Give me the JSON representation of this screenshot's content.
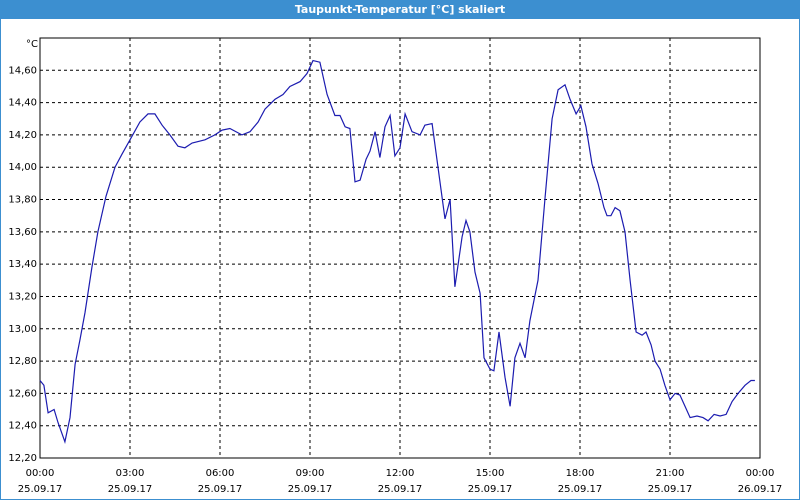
{
  "chart_data": {
    "type": "line",
    "title": "Taupunkt-Temperatur [°C] skaliert",
    "y_unit": "°C",
    "color": "#1c1cb0",
    "grid": true,
    "x": [
      0,
      0.13,
      0.27,
      0.47,
      0.6,
      0.83,
      1.0,
      1.17,
      1.33,
      1.5,
      1.73,
      1.93,
      2.2,
      2.5,
      2.73,
      3.0,
      3.33,
      3.6,
      3.83,
      4.07,
      4.33,
      4.6,
      4.83,
      5.07,
      5.5,
      5.83,
      6.07,
      6.33,
      6.73,
      7.0,
      7.27,
      7.5,
      7.83,
      8.1,
      8.33,
      8.67,
      8.9,
      9.1,
      9.33,
      9.57,
      9.83,
      10.0,
      10.17,
      10.33,
      10.5,
      10.67,
      10.87,
      11.0,
      11.17,
      11.33,
      11.5,
      11.67,
      11.83,
      12.0,
      12.17,
      12.4,
      12.67,
      12.83,
      13.07,
      13.23,
      13.5,
      13.67,
      13.83,
      14.07,
      14.2,
      14.33,
      14.5,
      14.67,
      14.8,
      15.0,
      15.13,
      15.3,
      15.5,
      15.67,
      15.83,
      16.0,
      16.17,
      16.33,
      16.6,
      16.83,
      17.07,
      17.27,
      17.5,
      17.67,
      17.87,
      18.03,
      18.2,
      18.4,
      18.6,
      18.8,
      18.9,
      19.03,
      19.17,
      19.33,
      19.5,
      19.67,
      19.87,
      20.07,
      20.2,
      20.37,
      20.5,
      20.67,
      20.83,
      21.0,
      21.17,
      21.33,
      21.5,
      21.67,
      21.9,
      22.1,
      22.27,
      22.47,
      22.67,
      22.87,
      23.07,
      23.27,
      23.5,
      23.7,
      23.83
    ],
    "values": [
      12.68,
      12.65,
      12.48,
      12.5,
      12.42,
      12.3,
      12.45,
      12.78,
      12.93,
      13.1,
      13.38,
      13.6,
      13.82,
      14.0,
      14.08,
      14.17,
      14.28,
      14.33,
      14.33,
      14.26,
      14.2,
      14.13,
      14.12,
      14.15,
      14.17,
      14.2,
      14.23,
      14.24,
      14.2,
      14.22,
      14.28,
      14.36,
      14.42,
      14.45,
      14.5,
      14.53,
      14.58,
      14.66,
      14.65,
      14.45,
      14.32,
      14.32,
      14.25,
      14.24,
      13.91,
      13.92,
      14.05,
      14.1,
      14.22,
      14.06,
      14.25,
      14.32,
      14.07,
      14.12,
      14.33,
      14.22,
      14.2,
      14.26,
      14.27,
      14.05,
      13.68,
      13.8,
      13.26,
      13.57,
      13.67,
      13.6,
      13.35,
      13.22,
      12.82,
      12.75,
      12.74,
      12.98,
      12.7,
      12.52,
      12.82,
      12.91,
      12.82,
      13.05,
      13.3,
      13.8,
      14.3,
      14.48,
      14.51,
      14.42,
      14.33,
      14.38,
      14.25,
      14.02,
      13.9,
      13.75,
      13.7,
      13.7,
      13.75,
      13.73,
      13.6,
      13.3,
      12.98,
      12.96,
      12.98,
      12.9,
      12.8,
      12.75,
      12.65,
      12.56,
      12.6,
      12.59,
      12.52,
      12.45,
      12.46,
      12.45,
      12.43,
      12.47,
      12.46,
      12.47,
      12.55,
      12.6,
      12.65,
      12.68,
      12.68
    ],
    "xlim": [
      0,
      24
    ],
    "xticks": [
      {
        "value": 0,
        "label": "00:00",
        "date": "25.09.17"
      },
      {
        "value": 3,
        "label": "03:00",
        "date": "25.09.17"
      },
      {
        "value": 6,
        "label": "06:00",
        "date": "25.09.17"
      },
      {
        "value": 9,
        "label": "09:00",
        "date": "25.09.17"
      },
      {
        "value": 12,
        "label": "12:00",
        "date": "25.09.17"
      },
      {
        "value": 15,
        "label": "15:00",
        "date": "25.09.17"
      },
      {
        "value": 18,
        "label": "18:00",
        "date": "25.09.17"
      },
      {
        "value": 21,
        "label": "21:00",
        "date": "25.09.17"
      },
      {
        "value": 24,
        "label": "00:00",
        "date": "26.09.17"
      }
    ],
    "ylim": [
      12.2,
      14.8
    ],
    "yticks": [
      {
        "value": 12.2,
        "label": "12,20"
      },
      {
        "value": 12.4,
        "label": "12,40"
      },
      {
        "value": 12.6,
        "label": "12,60"
      },
      {
        "value": 12.8,
        "label": "12,80"
      },
      {
        "value": 13.0,
        "label": "13,00"
      },
      {
        "value": 13.2,
        "label": "13,20"
      },
      {
        "value": 13.4,
        "label": "13,40"
      },
      {
        "value": 13.6,
        "label": "13,60"
      },
      {
        "value": 13.8,
        "label": "13,80"
      },
      {
        "value": 14.0,
        "label": "14,00"
      },
      {
        "value": 14.2,
        "label": "14,20"
      },
      {
        "value": 14.4,
        "label": "14,40"
      },
      {
        "value": 14.6,
        "label": "14,60"
      }
    ]
  }
}
